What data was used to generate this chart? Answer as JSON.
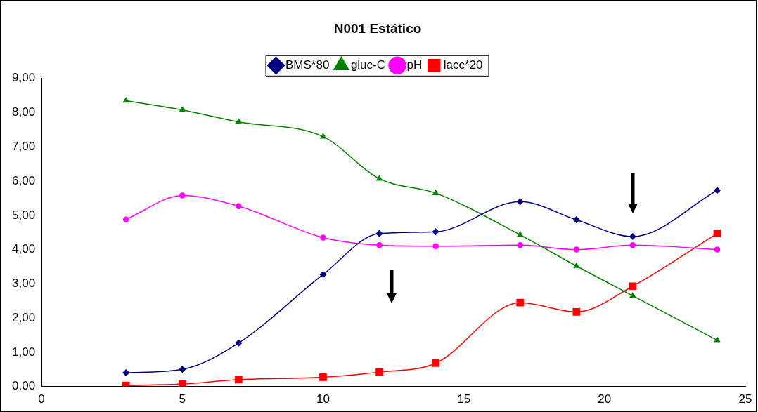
{
  "chart_data": {
    "type": "line",
    "title": "N001 Estático",
    "xlim": [
      0,
      25
    ],
    "xticks": [
      0,
      5,
      10,
      15,
      20,
      25
    ],
    "ylim": [
      0,
      9
    ],
    "yticks": [
      {
        "value": 0,
        "label": "0,00"
      },
      {
        "value": 1,
        "label": "1,00"
      },
      {
        "value": 2,
        "label": "2,00"
      },
      {
        "value": 3,
        "label": "3,00"
      },
      {
        "value": 4,
        "label": "4,00"
      },
      {
        "value": 5,
        "label": "5,00"
      },
      {
        "value": 6,
        "label": "6,00"
      },
      {
        "value": 7,
        "label": "7,00"
      },
      {
        "value": 8,
        "label": "8,00"
      },
      {
        "value": 9,
        "label": "9,00"
      }
    ],
    "x": [
      3,
      5,
      7,
      10,
      12,
      14,
      17,
      19,
      21,
      24
    ],
    "grid": false,
    "legend": "top",
    "series": [
      {
        "name": "BMS*80",
        "color": "#000080",
        "marker": "diamond",
        "values": [
          0.4,
          0.5,
          1.27,
          3.27,
          4.47,
          4.52,
          5.4,
          4.87,
          4.38,
          5.73
        ]
      },
      {
        "name": "gluc-C",
        "color": "#008000",
        "marker": "triangle",
        "values": [
          8.35,
          8.08,
          7.73,
          7.3,
          6.07,
          5.65,
          4.43,
          3.52,
          2.65,
          1.35
        ]
      },
      {
        "name": "pH",
        "color": "#ff00ff",
        "marker": "circle",
        "values": [
          4.88,
          5.58,
          5.27,
          4.35,
          4.13,
          4.1,
          4.13,
          4.0,
          4.13,
          4.0
        ]
      },
      {
        "name": "lacc*20",
        "color": "#ff0000",
        "marker": "square",
        "values": [
          0.03,
          0.07,
          0.2,
          0.27,
          0.42,
          0.68,
          2.45,
          2.18,
          2.93,
          4.47
        ]
      }
    ]
  }
}
